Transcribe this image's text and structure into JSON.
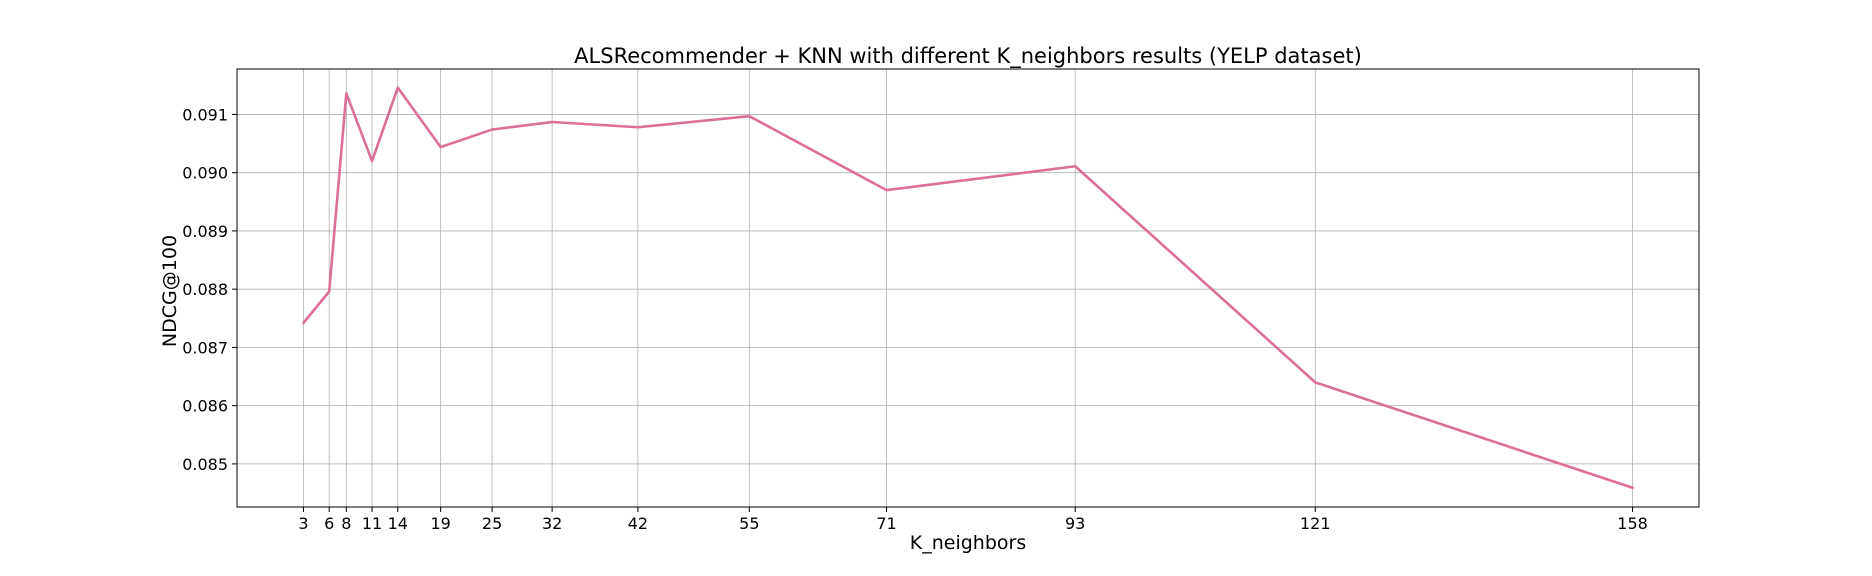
{
  "chart_data": {
    "type": "line",
    "title": "ALSRecommender + KNN with different K_neighbors results (YELP dataset)",
    "xlabel": "K_neighbors",
    "ylabel": "NDCG@100",
    "x": [
      3,
      6,
      8,
      11,
      14,
      19,
      25,
      32,
      42,
      55,
      71,
      93,
      121,
      158
    ],
    "x_tick_labels": [
      "3",
      "6",
      "8",
      "11",
      "14",
      "19",
      "25",
      "32",
      "42",
      "55",
      "71",
      "93",
      "121",
      "158"
    ],
    "series": [
      {
        "values": [
          0.08742,
          0.08796,
          0.09136,
          0.0902,
          0.09146,
          0.09044,
          0.09074,
          0.09087,
          0.09078,
          0.09097,
          0.0897,
          0.09011,
          0.0864,
          0.08459
        ],
        "color": "#dc6e9a"
      }
    ],
    "y_ticks": [
      0.085,
      0.086,
      0.087,
      0.088,
      0.089,
      0.09,
      0.091
    ],
    "y_tick_labels": [
      "0.085",
      "0.086",
      "0.087",
      "0.088",
      "0.089",
      "0.090",
      "0.091"
    ],
    "xlim": [
      -4.75,
      165.75
    ],
    "ylim": [
      0.08426,
      0.09178
    ],
    "grid": true,
    "legend": "none"
  }
}
